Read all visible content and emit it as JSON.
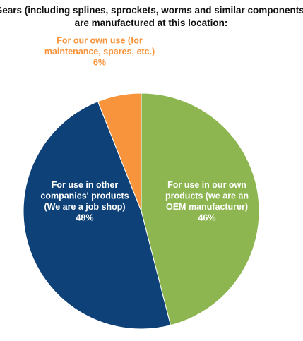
{
  "chart_data": {
    "type": "pie",
    "title": "Gears (including splines, sprockets, worms and similar components) are manufactured at this location:",
    "title_lines": [
      "Gears (including splines, sprockets, worms and similar components)",
      "are manufactured at this location:"
    ],
    "slices": [
      {
        "label": "For use in our own products (we are an OEM manufacturer)",
        "label_lines": [
          "For use in our own",
          "products (we are an",
          "OEM manufacturer)"
        ],
        "value_label": "46%",
        "value": 46,
        "color": "#8db651",
        "label_color": "#ffffff"
      },
      {
        "label": "For use in other companies' products (We are a job shop)",
        "label_lines": [
          "For use in other",
          "companies' products",
          "(We are a job shop)"
        ],
        "value_label": "48%",
        "value": 48,
        "color": "#0d4178",
        "label_color": "#ffffff"
      },
      {
        "label": "For our own use (for maintenance, spares, etc.)",
        "label_lines": [
          "For our own use (for",
          "maintenance, spares, etc.)"
        ],
        "value_label": "6%",
        "value": 6,
        "color": "#f7943c",
        "label_color": "#f7943c"
      }
    ],
    "start_angle_deg": 0,
    "direction": "clockwise",
    "legend": "none"
  }
}
